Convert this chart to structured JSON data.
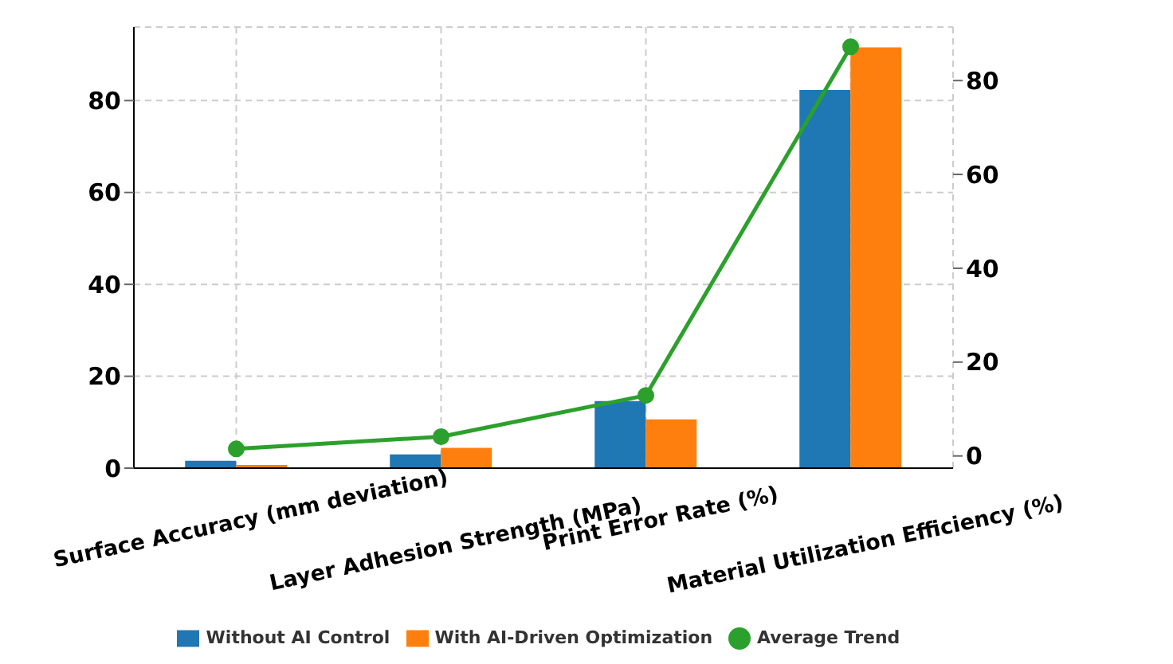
{
  "chart_data": {
    "type": "bar",
    "categories": [
      "Surface Accuracy (mm deviation)",
      "Layer Adhesion Strength (MPa)",
      "Print Error Rate (%)",
      "Material Utilization Efficiency (%)"
    ],
    "series": [
      {
        "name": "Without AI Control",
        "color": "#1f77b4",
        "values": [
          1.6,
          3.0,
          14.6,
          82.3
        ]
      },
      {
        "name": "With AI-Driven Optimization",
        "color": "#ff7f0e",
        "values": [
          0.7,
          4.4,
          10.6,
          91.6
        ]
      },
      {
        "name": "Average Trend",
        "type": "line",
        "axis": "y2",
        "color": "#2ca02c",
        "marker": "circle",
        "values": [
          1.5,
          4.1,
          12.9,
          87.2
        ]
      }
    ],
    "ylim": [
      0,
      96
    ],
    "yticks": [
      0,
      20,
      40,
      60,
      80
    ],
    "y2lim": [
      -2.6,
      91.4
    ],
    "y2ticks": [
      0,
      20,
      40,
      60,
      80
    ],
    "grid": true,
    "legend": "bottom"
  }
}
